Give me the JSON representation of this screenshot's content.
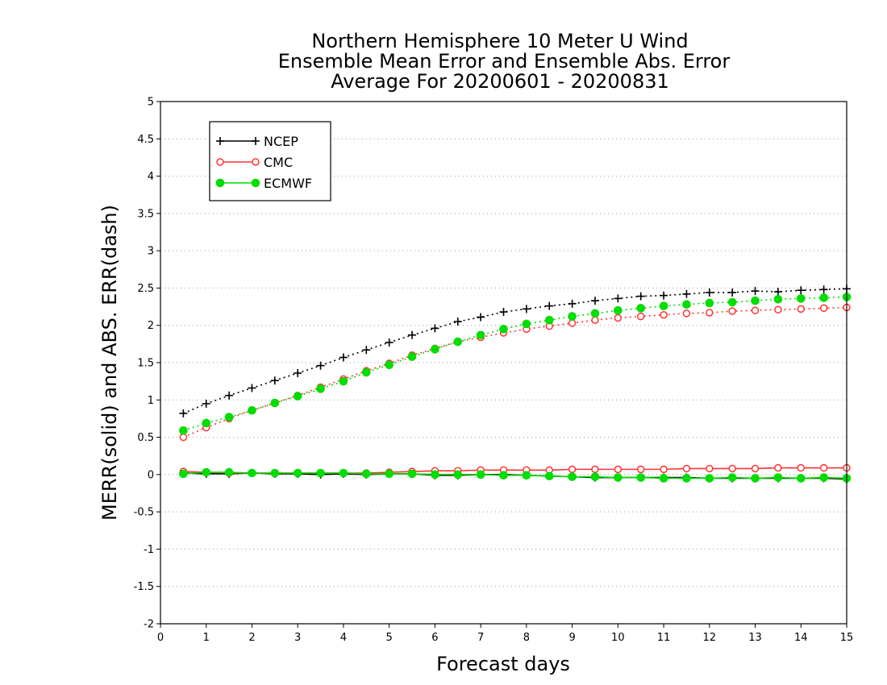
{
  "chart_data": {
    "type": "line",
    "title_lines": [
      "Northern Hemisphere 10 Meter U Wind",
      "Ensemble Mean Error and Ensemble Abs. Error",
      "Average For 20200601 - 20200831"
    ],
    "xlabel": "Forecast days",
    "ylabel": "MERR(solid) and ABS. ERR(dash)",
    "xlim": [
      0,
      15
    ],
    "ylim": [
      -2,
      5
    ],
    "x_ticks": [
      "0",
      "1",
      "2",
      "3",
      "4",
      "5",
      "6",
      "7",
      "8",
      "9",
      "10",
      "11",
      "12",
      "13",
      "14",
      "15"
    ],
    "y_ticks": [
      "-2",
      "-1.5",
      "-1",
      "-0.5",
      "0",
      "0.5",
      "1",
      "1.5",
      "2",
      "2.5",
      "3",
      "3.5",
      "4",
      "4.5",
      "5"
    ],
    "y_tick_values": [
      -2,
      -1.5,
      -1,
      -0.5,
      0,
      0.5,
      1,
      1.5,
      2,
      2.5,
      3,
      3.5,
      4,
      4.5,
      5
    ],
    "grid": "horizontal-dotted",
    "legend_position": "top-left",
    "x": [
      0.5,
      1,
      1.5,
      2,
      2.5,
      3,
      3.5,
      4,
      4.5,
      5,
      5.5,
      6,
      6.5,
      7,
      7.5,
      8,
      8.5,
      9,
      9.5,
      10,
      10.5,
      11,
      11.5,
      12,
      12.5,
      13,
      13.5,
      14,
      14.5,
      15
    ],
    "series": [
      {
        "name": "NCEP",
        "color": "#000000",
        "marker": "plus",
        "mean_error": [
          0.02,
          0.01,
          0.01,
          0.02,
          0.01,
          0.01,
          0.0,
          0.01,
          0.0,
          0.01,
          0.01,
          -0.01,
          -0.01,
          0.0,
          0.0,
          -0.01,
          -0.02,
          -0.03,
          -0.04,
          -0.04,
          -0.04,
          -0.04,
          -0.04,
          -0.05,
          -0.05,
          -0.05,
          -0.05,
          -0.05,
          -0.05,
          -0.06
        ],
        "abs_error": [
          0.82,
          0.95,
          1.06,
          1.16,
          1.26,
          1.36,
          1.46,
          1.57,
          1.67,
          1.77,
          1.87,
          1.96,
          2.05,
          2.11,
          2.18,
          2.22,
          2.26,
          2.29,
          2.33,
          2.36,
          2.39,
          2.4,
          2.42,
          2.44,
          2.44,
          2.46,
          2.45,
          2.47,
          2.48,
          2.49
        ]
      },
      {
        "name": "CMC",
        "color": "#ff3333",
        "marker": "open-circle",
        "mean_error": [
          0.04,
          0.03,
          0.02,
          0.02,
          0.02,
          0.02,
          0.02,
          0.02,
          0.02,
          0.03,
          0.04,
          0.05,
          0.05,
          0.06,
          0.06,
          0.06,
          0.06,
          0.07,
          0.07,
          0.07,
          0.07,
          0.07,
          0.08,
          0.08,
          0.08,
          0.08,
          0.09,
          0.09,
          0.09,
          0.09
        ],
        "abs_error": [
          0.5,
          0.63,
          0.75,
          0.86,
          0.96,
          1.06,
          1.17,
          1.28,
          1.39,
          1.49,
          1.6,
          1.69,
          1.78,
          1.84,
          1.9,
          1.95,
          1.99,
          2.03,
          2.07,
          2.1,
          2.12,
          2.14,
          2.16,
          2.17,
          2.19,
          2.2,
          2.21,
          2.22,
          2.23,
          2.24
        ]
      },
      {
        "name": "ECMWF",
        "color": "#00dd00",
        "marker": "filled-circle",
        "mean_error": [
          0.01,
          0.03,
          0.03,
          0.02,
          0.02,
          0.02,
          0.02,
          0.02,
          0.01,
          0.01,
          0.01,
          0.0,
          0.0,
          0.0,
          -0.01,
          -0.01,
          -0.02,
          -0.03,
          -0.03,
          -0.04,
          -0.04,
          -0.05,
          -0.05,
          -0.05,
          -0.04,
          -0.05,
          -0.04,
          -0.05,
          -0.04,
          -0.05
        ],
        "abs_error": [
          0.59,
          0.69,
          0.77,
          0.86,
          0.96,
          1.05,
          1.15,
          1.25,
          1.37,
          1.47,
          1.58,
          1.68,
          1.78,
          1.87,
          1.95,
          2.02,
          2.07,
          2.12,
          2.16,
          2.2,
          2.23,
          2.26,
          2.28,
          2.3,
          2.31,
          2.33,
          2.35,
          2.36,
          2.37,
          2.38
        ]
      }
    ]
  }
}
